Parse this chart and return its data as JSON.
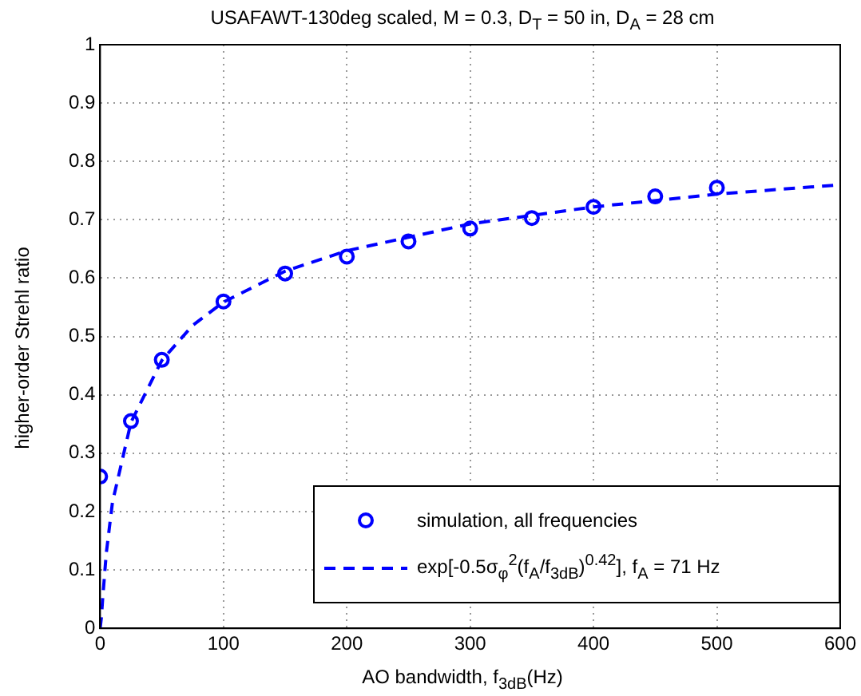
{
  "chart_data": {
    "type": "scatter",
    "title": "USAFAWT-130deg scaled, M = 0.3, D$_{T}$ = 50 in, D$_{A}$ = 28 cm",
    "xlabel": "AO bandwidth, f$_{3dB}$(Hz)",
    "ylabel": "higher-order Strehl ratio",
    "series": [
      {
        "name": "simulation, all frequencies",
        "type": "scatter",
        "color": "#0000ff",
        "marker": "circle",
        "x": [
          0,
          25,
          50,
          100,
          150,
          200,
          250,
          300,
          350,
          400,
          450,
          500
        ],
        "values": [
          0.26,
          0.355,
          0.46,
          0.56,
          0.608,
          0.637,
          0.663,
          0.685,
          0.703,
          0.722,
          0.74,
          0.755
        ]
      },
      {
        "name": "exp[-0.5σ$_{φ}$$^{2}$(f$_{A}$/f$_{3dB}$)$^{0.42}$], f$_{A}$ = 71 Hz",
        "type": "line",
        "color": "#0000ff",
        "marker": "none",
        "line_style": "dashed",
        "x": [
          0,
          1,
          2,
          5,
          10,
          25,
          50,
          75,
          100,
          150,
          200,
          300,
          400,
          500,
          600
        ],
        "values": [
          0,
          0.018,
          0.049,
          0.129,
          0.216,
          0.353,
          0.459,
          0.519,
          0.559,
          0.612,
          0.647,
          0.693,
          0.722,
          0.744,
          0.76
        ]
      }
    ],
    "xlim": [
      0,
      600
    ],
    "xticks": [
      0,
      100,
      200,
      300,
      400,
      500,
      600
    ],
    "ylim": [
      0,
      1
    ],
    "yticks": [
      0,
      0.1,
      0.2,
      0.3,
      0.4,
      0.5,
      0.6,
      0.7,
      0.8,
      0.9,
      1
    ],
    "grid": true,
    "legend": "bottom right"
  }
}
